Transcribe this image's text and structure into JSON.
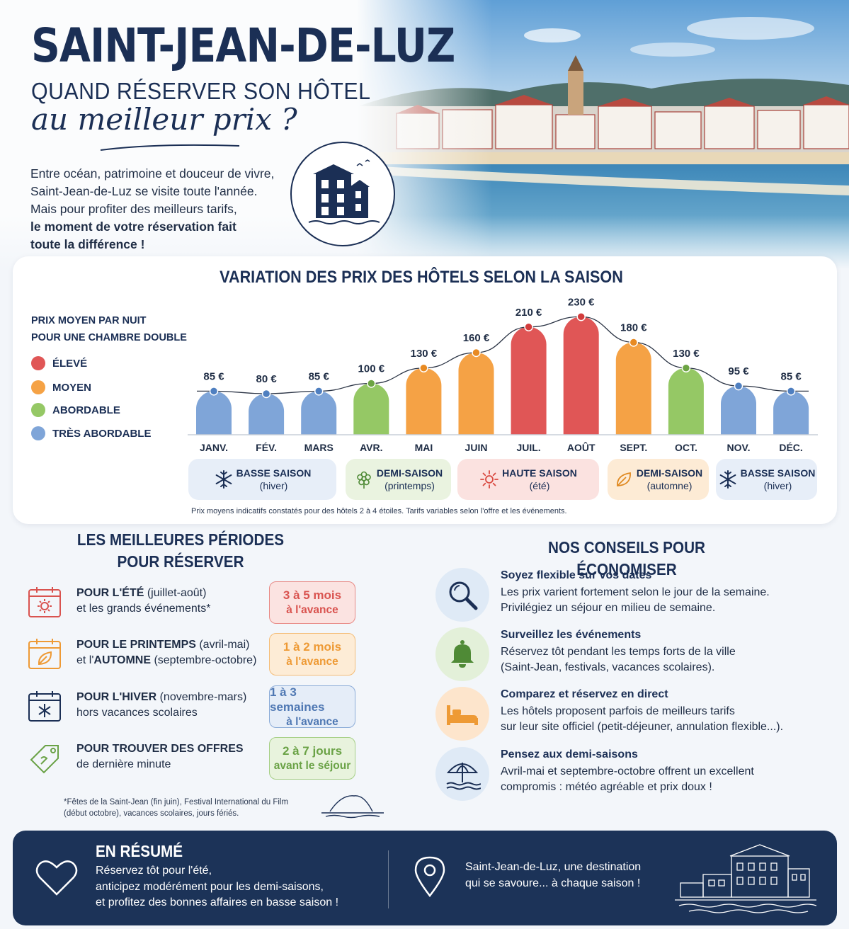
{
  "hero": {
    "title": "SAINT-JEAN-DE-LUZ",
    "subtitle": "QUAND RÉSERVER SON HÔTEL",
    "script": "au meilleur prix ?",
    "intro_lines": [
      "Entre océan, patrimoine et douceur de vivre,",
      "Saint-Jean-de-Luz se visite toute l'année.",
      "Mais pour profiter des meilleurs tarifs,"
    ],
    "intro_bold": [
      "le moment de votre réservation fait",
      "toute la différence !"
    ]
  },
  "chart_data": {
    "type": "bar",
    "title": "VARIATION DES PRIX DES HÔTELS SELON LA SAISON",
    "ylabel": "PRIX MOYEN PAR NUIT POUR UNE CHAMBRE DOUBLE",
    "categories": [
      "JANV.",
      "FÉV.",
      "MARS",
      "AVR.",
      "MAI",
      "JUIN",
      "JUIL.",
      "AOÛT",
      "SEPT.",
      "OCT.",
      "NOV.",
      "DÉC."
    ],
    "values": [
      85,
      80,
      85,
      100,
      130,
      160,
      210,
      230,
      180,
      130,
      95,
      85
    ],
    "value_labels": [
      "85 €",
      "80 €",
      "85 €",
      "100 €",
      "130 €",
      "160 €",
      "210 €",
      "230 €",
      "180 €",
      "130 €",
      "95 €",
      "85 €"
    ],
    "price_levels": [
      "tres_abordable",
      "tres_abordable",
      "tres_abordable",
      "abordable",
      "moyen",
      "moyen",
      "eleve",
      "eleve",
      "moyen",
      "abordable",
      "tres_abordable",
      "tres_abordable"
    ],
    "ylim": [
      0,
      240
    ],
    "grid": false,
    "legend": {
      "head_1": "PRIX MOYEN PAR NUIT",
      "head_2": "POUR UNE CHAMBRE DOUBLE",
      "placement": "left",
      "items": [
        {
          "key": "eleve",
          "label": "ÉLEVÉ",
          "color": "#e05656"
        },
        {
          "key": "moyen",
          "label": "MOYEN",
          "color": "#f5a245"
        },
        {
          "key": "abordable",
          "label": "ABORDABLE",
          "color": "#95c865"
        },
        {
          "key": "tres_abordable",
          "label": "TRÈS ABORDABLE",
          "color": "#7fa5d8"
        }
      ]
    },
    "seasons": [
      {
        "name": "BASSE SAISON",
        "sub": "(hiver)",
        "icon": "snowflake-icon",
        "bg": "#e7eef8"
      },
      {
        "name": "DEMI-SAISON",
        "sub": "(printemps)",
        "icon": "flower-icon",
        "bg": "#eaf3e0"
      },
      {
        "name": "HAUTE SAISON",
        "sub": "(été)",
        "icon": "sun-icon",
        "bg": "#fbe2e0"
      },
      {
        "name": "DEMI-SAISON",
        "sub": "(automne)",
        "icon": "leaf-icon",
        "bg": "#fdebd5"
      },
      {
        "name": "BASSE SAISON",
        "sub": "(hiver)",
        "icon": "snowflake-icon",
        "bg": "#e7eef8"
      }
    ],
    "note": "Prix moyens indicatifs constatés pour des hôtels 2 à 4 étoiles. Tarifs variables selon l'offre et les événements."
  },
  "periods": {
    "title_1": "LES MEILLEURES PÉRIODES",
    "title_2": "POUR RÉSERVER",
    "items": [
      {
        "head": "POUR L'ÉTÉ",
        "rest": " (juillet-août)",
        "line2": "et les grands événements*",
        "pill_1": "3 à 5 mois",
        "pill_2": "à l'avance",
        "color": "#d9534f",
        "bg": "#fbe3e1",
        "icon": "calendar-sun-icon"
      },
      {
        "head": "POUR LE PRINTEMPS",
        "rest": " (avril-mai)",
        "line2_pre": "et l'",
        "line2_bold": "AUTOMNE",
        "line2_post": " (septembre-octobre)",
        "pill_1": "1 à 2 mois",
        "pill_2": "à l'avance",
        "color": "#ee9a35",
        "bg": "#fdecd6",
        "icon": "calendar-leaf-icon"
      },
      {
        "head": "POUR L'HIVER",
        "rest": " (novembre-mars)",
        "line2": "hors vacances scolaires",
        "pill_1": "1 à 3 semaines",
        "pill_2": "à l'avance",
        "color": "#4f78b3",
        "bg": "#e5edf8",
        "icon": "calendar-snow-icon"
      },
      {
        "head": "POUR TROUVER DES OFFRES",
        "rest": "",
        "line2": "de dernière minute",
        "pill_1": "2 à 7 jours",
        "pill_2": "avant le séjour",
        "color": "#6aa246",
        "bg": "#e8f3dd",
        "icon": "price-tag-icon"
      }
    ],
    "footnote_1": "*Fêtes de la Saint-Jean (fin juin), Festival International du Film",
    "footnote_2": "(début octobre), vacances scolaires, jours fériés."
  },
  "tips": {
    "title": "NOS CONSEILS POUR ÉCONOMISER",
    "items": [
      {
        "title": "Soyez flexible sur vos dates",
        "l1": "Les prix varient fortement selon le jour de la semaine.",
        "l2": "Privilégiez un séjour en milieu de semaine.",
        "icon": "magnifier-icon",
        "bg": "#dfeaf6"
      },
      {
        "title": "Surveillez les événements",
        "l1": "Réservez tôt pendant les temps forts de la ville",
        "l2": "(Saint-Jean, festivals, vacances scolaires).",
        "icon": "bell-icon",
        "bg": "#e3f0d9"
      },
      {
        "title": "Comparez et réservez en direct",
        "l1": "Les hôtels proposent parfois de meilleurs tarifs",
        "l2": "sur leur site officiel (petit-déjeuner, annulation flexible...).",
        "icon": "bed-icon",
        "bg": "#fde5cc"
      },
      {
        "title": "Pensez aux demi-saisons",
        "l1": "Avril-mai et septembre-octobre offrent un excellent",
        "l2": "compromis : météo agréable et prix doux !",
        "icon": "beach-umbrella-icon",
        "bg": "#dfeaf6"
      }
    ]
  },
  "summary": {
    "title": "EN RÉSUMÉ",
    "l1": "Réservez tôt pour l'été,",
    "l2": "anticipez modérément pour les demi-saisons,",
    "l3": "et profitez des bonnes affaires en basse saison !",
    "right_1": "Saint-Jean-de-Luz, une destination",
    "right_2": "qui se savoure... à chaque saison !"
  }
}
